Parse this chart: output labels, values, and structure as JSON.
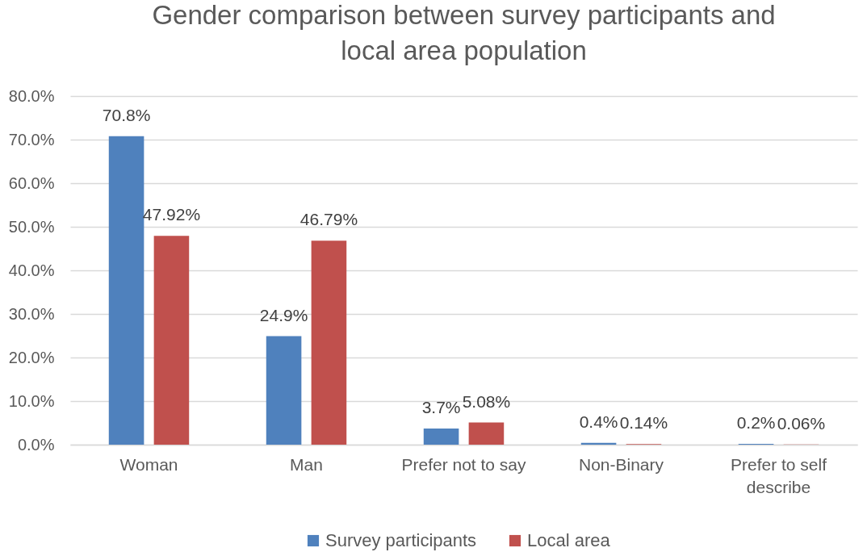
{
  "chart_data": {
    "type": "bar",
    "title": "Gender comparison between survey participants and local area population",
    "categories": [
      "Woman",
      "Man",
      "Prefer not to say",
      "Non-Binary",
      "Prefer to self describe"
    ],
    "series": [
      {
        "name": "Survey participants",
        "color": "#4f81bd",
        "values": [
          70.8,
          24.9,
          3.7,
          0.4,
          0.2
        ],
        "value_labels": [
          "70.8%",
          "24.9%",
          "3.7%",
          "0.4%",
          "0.2%"
        ]
      },
      {
        "name": "Local area",
        "color": "#c0504d",
        "values": [
          47.92,
          46.79,
          5.08,
          0.14,
          0.06
        ],
        "value_labels": [
          "47.92%",
          "46.79%",
          "5.08%",
          "0.14%",
          "0.06%"
        ]
      }
    ],
    "ylim": [
      0,
      80
    ],
    "yticks": [
      {
        "value": 0,
        "label": "0.0%"
      },
      {
        "value": 10,
        "label": "10.0%"
      },
      {
        "value": 20,
        "label": "20.0%"
      },
      {
        "value": 30,
        "label": "30.0%"
      },
      {
        "value": 40,
        "label": "40.0%"
      },
      {
        "value": 50,
        "label": "50.0%"
      },
      {
        "value": 60,
        "label": "60.0%"
      },
      {
        "value": 70,
        "label": "70.0%"
      },
      {
        "value": 80,
        "label": "80.0%"
      }
    ],
    "grid": "y",
    "legend": "bottom"
  }
}
